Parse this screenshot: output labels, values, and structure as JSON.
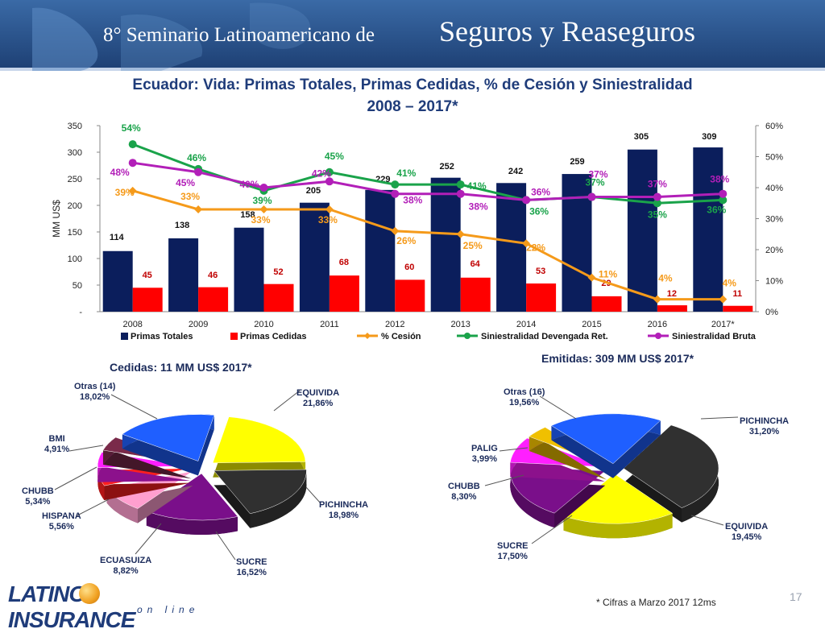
{
  "banner": {
    "title_prefix": "8° Seminario Latinoamericano de",
    "title_emph": "Seguros y Reaseguros"
  },
  "page": {
    "title_line1": "Ecuador: Vida: Primas Totales, Primas Cedidas, % de Cesión y Siniestralidad",
    "title_line2": "2008 – 2017*",
    "footnote": "* Cifras a Marzo 2017 12ms",
    "page_number": "17",
    "logo_text": "LATINO  INSURANCE",
    "logo_sub": "on line"
  },
  "colors": {
    "primas_totales": "#0b1e5c",
    "primas_cedidas": "#ff0000",
    "pct_cesion": "#f59a1a",
    "sin_devengada": "#1aa34a",
    "sin_bruta": "#b21fb8",
    "banner_bg": "#2a4f86"
  },
  "chart_data": [
    {
      "type": "bar",
      "title": "Ecuador: Vida: Primas Totales, Primas Cedidas, % de Cesión y Siniestralidad",
      "ylabel": "MM US$",
      "ylim": [
        0,
        350
      ],
      "y2lim": [
        0,
        0.6
      ],
      "y_ticks": [
        "-",
        "50",
        "100",
        "150",
        "200",
        "250",
        "300",
        "350"
      ],
      "y2_ticks": [
        "0%",
        "10%",
        "20%",
        "30%",
        "40%",
        "50%",
        "60%"
      ],
      "categories": [
        "2008",
        "2009",
        "2010",
        "2011",
        "2012",
        "2013",
        "2014",
        "2015",
        "2016",
        "2017*"
      ],
      "legend_position": "bottom",
      "series": [
        {
          "name": "Primas Totales",
          "kind": "bar",
          "values": [
            114,
            138,
            158,
            205,
            229,
            252,
            242,
            259,
            305,
            309
          ],
          "labels": [
            "114",
            "138",
            "158",
            "205",
            "229",
            "252",
            "242",
            "259",
            "305",
            "309"
          ]
        },
        {
          "name": "Primas Cedidas",
          "kind": "bar",
          "values": [
            45,
            46,
            52,
            68,
            60,
            64,
            53,
            29,
            12,
            11
          ],
          "labels": [
            "45",
            "46",
            "52",
            "68",
            "60",
            "64",
            "53",
            "29",
            "12",
            "11"
          ]
        },
        {
          "name": "% Cesión",
          "kind": "line",
          "axis": "right",
          "values": [
            0.39,
            0.33,
            0.33,
            0.33,
            0.26,
            0.25,
            0.22,
            0.11,
            0.04,
            0.04
          ],
          "labels": [
            "39%",
            "33%",
            "33%",
            "33%",
            "26%",
            "25%",
            "22%",
            "11%",
            "4%",
            "4%"
          ]
        },
        {
          "name": "Siniestralidad Devengada Ret.",
          "kind": "line",
          "axis": "right",
          "values": [
            0.54,
            0.46,
            0.39,
            0.45,
            0.41,
            0.41,
            0.36,
            0.37,
            0.35,
            0.36
          ],
          "labels": [
            "54%",
            "46%",
            "39%",
            "45%",
            "41%",
            "41%",
            "36%",
            "37%",
            "35%",
            "36%"
          ]
        },
        {
          "name": "Siniestralidad Bruta",
          "kind": "line",
          "axis": "right",
          "values": [
            0.48,
            0.45,
            0.4,
            0.42,
            0.38,
            0.38,
            0.36,
            0.37,
            0.37,
            0.38
          ],
          "labels": [
            "48%",
            "45%",
            "40%",
            "42%",
            "38%",
            "38%",
            "36%",
            "37%",
            "37%",
            "38%"
          ]
        }
      ]
    },
    {
      "type": "pie",
      "title": "Cedidas: 11 MM US$ 2017*",
      "slices": [
        {
          "name": "EQUIVIDA",
          "value": 21.86,
          "label": "21,86%",
          "color": "#ffff00"
        },
        {
          "name": "PICHINCHA",
          "value": 18.98,
          "label": "18,98%",
          "color": "#303030"
        },
        {
          "name": "SUCRE",
          "value": 16.52,
          "label": "16,52%",
          "color": "#7a0f8a"
        },
        {
          "name": "ECUASUIZA",
          "value": 8.82,
          "label": "8,82%",
          "color": "#ff9fcf"
        },
        {
          "name": "HISPANA",
          "value": 5.56,
          "label": "5,56%",
          "color": "#ff1f1f"
        },
        {
          "name": "CHUBB",
          "value": 5.34,
          "label": "5,34%",
          "color": "#ff1fff"
        },
        {
          "name": "BMI",
          "value": 4.91,
          "label": "4,91%",
          "color": "#7a2a4a"
        },
        {
          "name": "Otras (14)",
          "value": 18.02,
          "label": "18,02%",
          "color": "#1f5fff"
        }
      ]
    },
    {
      "type": "pie",
      "title": "Emitidas: 309 MM US$ 2017*",
      "slices": [
        {
          "name": "PICHINCHA",
          "value": 31.2,
          "label": "31,20%",
          "color": "#303030"
        },
        {
          "name": "EQUIVIDA",
          "value": 19.45,
          "label": "19,45%",
          "color": "#ffff00"
        },
        {
          "name": "SUCRE",
          "value": 17.5,
          "label": "17,50%",
          "color": "#7a0f8a"
        },
        {
          "name": "CHUBB",
          "value": 8.3,
          "label": "8,30%",
          "color": "#ff1fff"
        },
        {
          "name": "PALIG",
          "value": 3.99,
          "label": "3,99%",
          "color": "#f0c000"
        },
        {
          "name": "Otras (16)",
          "value": 19.56,
          "label": "19,56%",
          "color": "#1f5fff"
        }
      ]
    }
  ]
}
